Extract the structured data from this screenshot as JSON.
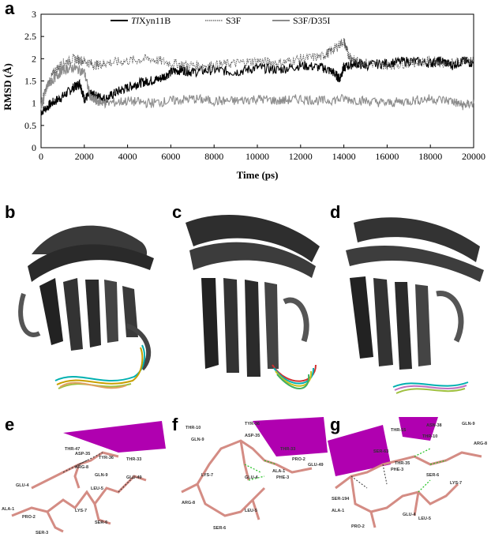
{
  "panel_labels": {
    "a": "a",
    "b": "b",
    "c": "c",
    "d": "d",
    "e": "e",
    "f": "f",
    "g": "g"
  },
  "chart_data": {
    "type": "line",
    "xlabel": "Time (ps)",
    "ylabel": "RMSD (Å)",
    "xlim": [
      0,
      20000
    ],
    "ylim": [
      0,
      3
    ],
    "xticks": [
      0,
      2000,
      4000,
      6000,
      8000,
      10000,
      12000,
      14000,
      16000,
      18000,
      20000
    ],
    "yticks": [
      0,
      0.5,
      1,
      1.5,
      2,
      2.5,
      3
    ],
    "grid": false,
    "legend_position": "top",
    "series": [
      {
        "name_prefix": "Tl",
        "name_rest": "Xyn11B",
        "color": "#000000",
        "style": "solid",
        "x": [
          0,
          500,
          1000,
          1500,
          1800,
          2000,
          2300,
          2600,
          3000,
          3500,
          4000,
          4500,
          5000,
          5500,
          6000,
          6500,
          7000,
          8000,
          9000,
          10000,
          11000,
          12000,
          13000,
          13500,
          13800,
          14000,
          14500,
          15000,
          16000,
          17000,
          18000,
          18500,
          19000,
          19500,
          20000
        ],
        "y": [
          0.8,
          1.0,
          1.15,
          1.35,
          1.45,
          1.1,
          1.2,
          1.15,
          1.1,
          1.25,
          1.35,
          1.45,
          1.5,
          1.55,
          1.7,
          1.75,
          1.7,
          1.75,
          1.7,
          1.8,
          1.75,
          1.85,
          1.8,
          1.7,
          1.55,
          1.8,
          1.9,
          1.85,
          1.9,
          1.95,
          1.9,
          1.95,
          1.85,
          1.95,
          1.9
        ]
      },
      {
        "name": "S3F",
        "color": "#555555",
        "style": "dotted",
        "x": [
          0,
          300,
          600,
          1000,
          1500,
          2000,
          2500,
          3000,
          4000,
          5000,
          6000,
          7000,
          8000,
          9000,
          10000,
          11000,
          12000,
          13000,
          13500,
          14000,
          14200,
          14500,
          15000,
          16000,
          17000,
          18000,
          19000,
          20000
        ],
        "y": [
          1.0,
          1.4,
          1.7,
          1.9,
          2.0,
          1.95,
          1.85,
          1.9,
          1.95,
          2.0,
          1.9,
          1.85,
          1.85,
          1.9,
          1.95,
          1.9,
          2.0,
          2.05,
          2.2,
          2.4,
          2.1,
          1.95,
          1.9,
          1.85,
          1.9,
          1.95,
          1.9,
          2.0
        ]
      },
      {
        "name": "S3F/D35I",
        "color": "#8c8c8c",
        "style": "solid",
        "x": [
          0,
          300,
          700,
          1000,
          1500,
          2000,
          2300,
          2600,
          3000,
          4000,
          5000,
          6000,
          7000,
          8000,
          9000,
          10000,
          11000,
          12000,
          13000,
          14000,
          15000,
          16000,
          17000,
          18000,
          19000,
          19500,
          20000
        ],
        "y": [
          0.9,
          1.4,
          1.6,
          1.75,
          1.8,
          1.7,
          1.1,
          1.05,
          1.0,
          1.05,
          1.0,
          1.05,
          1.1,
          1.05,
          1.05,
          1.1,
          1.05,
          1.1,
          1.05,
          1.1,
          1.05,
          1.0,
          1.05,
          1.1,
          1.05,
          0.95,
          1.0
        ]
      }
    ]
  },
  "residue_labels": {
    "e": [
      "THR-47",
      "ASP-35",
      "TYR-36",
      "THR-33",
      "ARG-8",
      "GLN-9",
      "GLU-49",
      "LEU-5",
      "GLU-4",
      "LYS-7",
      "PRO-2",
      "ALA-1",
      "SER-3",
      "SER-6"
    ],
    "f": [
      "THR-10",
      "GLN-9",
      "TYR-36",
      "ASP-35",
      "THR-33",
      "GLU-49",
      "PRO-2",
      "LYS-7",
      "GLU-4",
      "ALA-1",
      "PHE-3",
      "ARG-8",
      "LEU-5",
      "SER-6"
    ],
    "g": [
      "ASN-38",
      "GLN-9",
      "ARG-8",
      "THR-15",
      "THR-10",
      "SER-63",
      "THR-35",
      "PHE-3",
      "SER-194",
      "SER-6",
      "LYS-7",
      "ALA-1",
      "PRO-2",
      "GLU-4",
      "LEU-5"
    ]
  },
  "colors": {
    "ribbon_dark": "#2a2a2a",
    "ribbon_mid": "#555555",
    "ribbon_light": "#8a8a8a",
    "helix": "#b000b0",
    "stick": "#d48c84",
    "nitrogen": "#2040c0",
    "oxygen": "#d02020",
    "hbond_green": "#20c020",
    "hbond_dark": "#333333"
  }
}
